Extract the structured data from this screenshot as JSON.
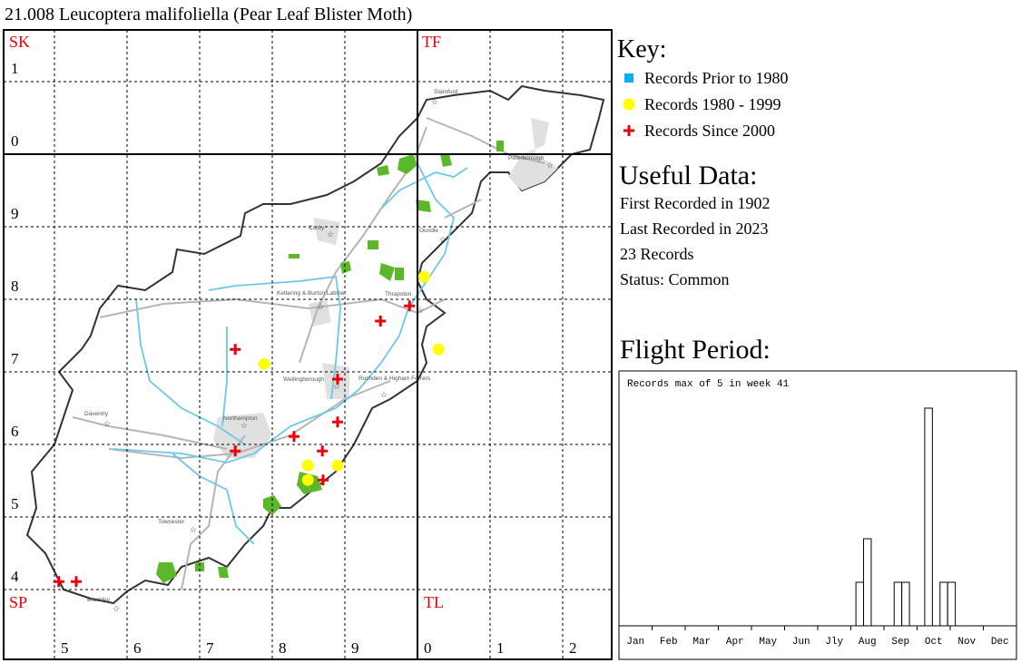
{
  "title": "21.008 Leucoptera malifoliella (Pear Leaf Blister Moth)",
  "grid": {
    "squares": [
      "SK",
      "TF",
      "SP",
      "TL"
    ],
    "rows": [
      "1",
      "0",
      "9",
      "8",
      "7",
      "6",
      "5",
      "4"
    ],
    "columns": [
      "5",
      "6",
      "7",
      "8",
      "9",
      "0",
      "1",
      "2"
    ]
  },
  "places": [
    "Stamford",
    "Peterborough",
    "Corby",
    "Oundle",
    "Kettering & Burton Latimer",
    "Thrapston",
    "Wellingborough",
    "Rushden & Higham Ferrers",
    "Daventry",
    "Northampton",
    "Towcester",
    "Brackley"
  ],
  "key": {
    "title": "Key:",
    "items": [
      {
        "label": "Records Prior to 1980",
        "color": "#00b0f0",
        "records": []
      },
      {
        "label": "Records 1980 - 1999",
        "color": "#ffff00",
        "records": [
          {
            "e": 478.9,
            "n": 271.1
          },
          {
            "e": 500.9,
            "n": 283.1
          },
          {
            "e": 502.9,
            "n": 273.1
          },
          {
            "e": 484.9,
            "n": 257.1
          },
          {
            "e": 489.0,
            "n": 257.1
          },
          {
            "e": 484.9,
            "n": 255.1
          }
        ]
      },
      {
        "label": "Records Since 2000",
        "color": "#e8000b",
        "records": [
          {
            "e": 450.6,
            "n": 241.1
          },
          {
            "e": 453.0,
            "n": 241.1
          },
          {
            "e": 474.9,
            "n": 273.1
          },
          {
            "e": 489.0,
            "n": 269.0
          },
          {
            "e": 489.0,
            "n": 263.1
          },
          {
            "e": 483.0,
            "n": 261.1
          },
          {
            "e": 474.9,
            "n": 259.1
          },
          {
            "e": 486.9,
            "n": 259.1
          },
          {
            "e": 487.0,
            "n": 255.1
          },
          {
            "e": 494.9,
            "n": 277.0
          },
          {
            "e": 498.9,
            "n": 279.1
          }
        ]
      }
    ]
  },
  "useful_data": {
    "title": "Useful Data:",
    "lines": [
      "First Recorded in 1902",
      "Last Recorded in 2023",
      "23 Records",
      "Status: Common"
    ]
  },
  "flight": {
    "title": "Flight Period:",
    "note": "Records max of 5 in week 41",
    "months": [
      "Jan",
      "Feb",
      "Mar",
      "Apr",
      "May",
      "Jun",
      "Jly",
      "Aug",
      "Sep",
      "Oct",
      "Nov",
      "Dec"
    ],
    "xlim": [
      0,
      52
    ],
    "weeks": [
      32,
      33,
      37,
      38,
      41,
      43,
      44
    ],
    "counts": [
      1,
      2,
      1,
      1,
      5,
      1,
      1
    ]
  }
}
